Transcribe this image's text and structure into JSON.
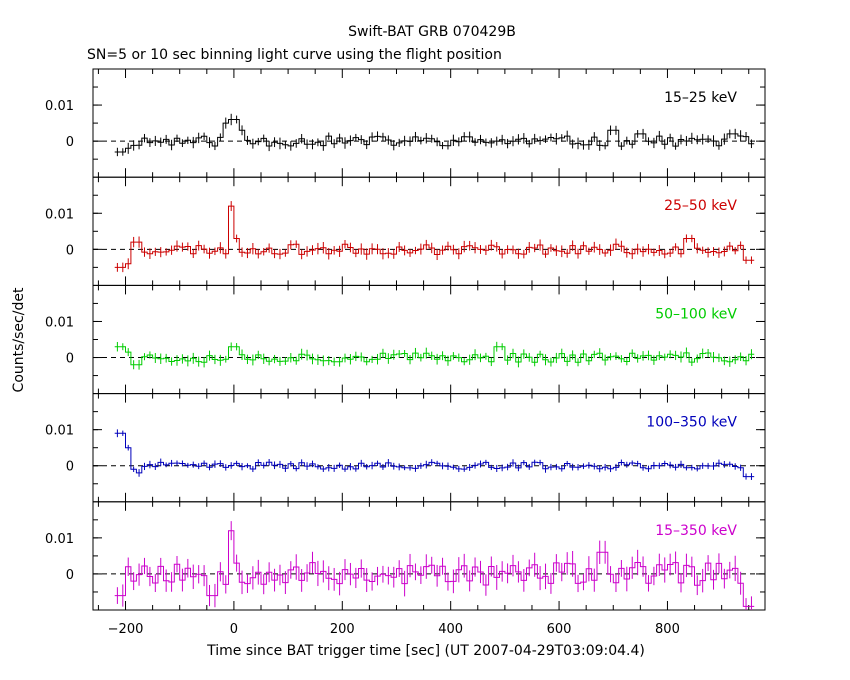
{
  "title": "Swift-BAT GRB 070429B",
  "subtitle": "SN=5 or 10 sec binning light curve using the flight position",
  "ylabel": "Counts/sec/det",
  "xlabel": "Time since BAT trigger time [sec] (UT 2007-04-29T03:09:04.4)",
  "chart_data": {
    "type": "line",
    "style": "step-with-error-bars",
    "xlim": [
      -260,
      980
    ],
    "x_ticks": [
      -200,
      0,
      200,
      400,
      600,
      800
    ],
    "ylim": [
      -0.01,
      0.02
    ],
    "y_ticks": [
      0,
      0.01
    ],
    "y_tick_labels": [
      "0",
      "0.01"
    ],
    "bin_size": 10,
    "x_start": -215,
    "x_end": 960,
    "zero_line": "dashed",
    "panels": [
      {
        "name": "15-25 keV",
        "label": "15–25 keV",
        "color": "#000000",
        "spikes": [
          [
            -210,
            -0.003
          ],
          [
            -200,
            -0.002
          ],
          [
            -10,
            0.005
          ],
          [
            0,
            0.006
          ],
          [
            10,
            0.003
          ],
          [
            700,
            0.003
          ],
          [
            750,
            0.002
          ],
          [
            920,
            0.002
          ]
        ],
        "noise": 0.0018,
        "seed": 11
      },
      {
        "name": "25-50 keV",
        "label": "25–50 keV",
        "color": "#cc0000",
        "spikes": [
          [
            -210,
            -0.005
          ],
          [
            -200,
            -0.004
          ],
          [
            -180,
            0.002
          ],
          [
            -5,
            0.012
          ],
          [
            5,
            0.003
          ],
          [
            840,
            0.003
          ],
          [
            950,
            -0.003
          ]
        ],
        "noise": 0.0018,
        "seed": 23
      },
      {
        "name": "50-100 keV",
        "label": "50–100 keV",
        "color": "#00cc00",
        "spikes": [
          [
            -210,
            0.003
          ],
          [
            -200,
            0.0015
          ],
          [
            -180,
            -0.002
          ],
          [
            0,
            0.003
          ],
          [
            490,
            0.003
          ]
        ],
        "noise": 0.0017,
        "seed": 37
      },
      {
        "name": "100-350 keV",
        "label": "100–350 keV",
        "color": "#0000bb",
        "spikes": [
          [
            -210,
            0.009
          ],
          [
            -200,
            0.005
          ],
          [
            -190,
            -0.001
          ],
          [
            -180,
            -0.002
          ],
          [
            950,
            -0.003
          ]
        ],
        "noise": 0.0012,
        "seed": 41
      },
      {
        "name": "15-350 keV",
        "label": "15–350 keV",
        "color": "#cc00cc",
        "spikes": [
          [
            -210,
            -0.006
          ],
          [
            -200,
            0.002
          ],
          [
            -5,
            0.012
          ],
          [
            5,
            0.003
          ],
          [
            -40,
            -0.006
          ],
          [
            680,
            0.006
          ],
          [
            950,
            -0.009
          ]
        ],
        "noise": 0.004,
        "seed": 53
      }
    ]
  }
}
